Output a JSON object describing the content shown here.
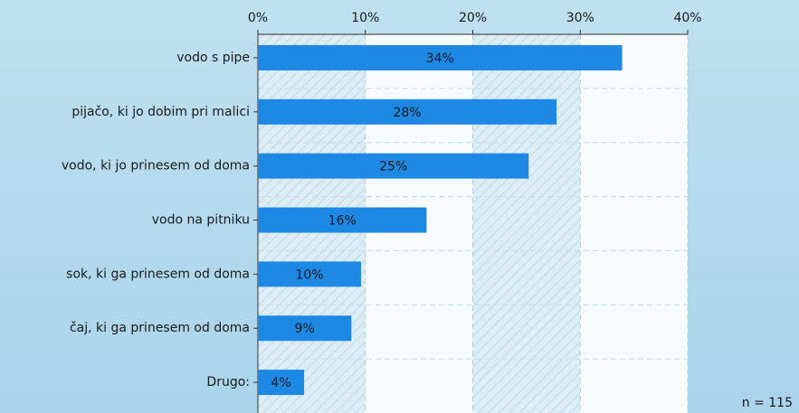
{
  "chart_data": {
    "type": "bar",
    "orientation": "horizontal",
    "categories": [
      "vodo s pipe",
      "pijačo, ki jo dobim pri malici",
      "vodo, ki jo prinesem od doma",
      "vodo na pitniku",
      "sok, ki ga prinesem od doma",
      "čaj, ki ga prinesem od doma",
      "Drugo:"
    ],
    "values": [
      33.9,
      27.8,
      25.2,
      15.7,
      9.6,
      8.7,
      4.3
    ],
    "value_labels": [
      "34%",
      "28%",
      "25%",
      "16%",
      "10%",
      "9%",
      "4%"
    ],
    "color": "#1e88e5",
    "xlim": [
      0,
      40
    ],
    "xticks": [
      {
        "value": 0,
        "label": "0%"
      },
      {
        "value": 10,
        "label": "10%"
      },
      {
        "value": 20,
        "label": "20%"
      },
      {
        "value": 30,
        "label": "30%"
      },
      {
        "value": 40,
        "label": "40%"
      }
    ],
    "grid": true,
    "annotation": "n = 115"
  }
}
